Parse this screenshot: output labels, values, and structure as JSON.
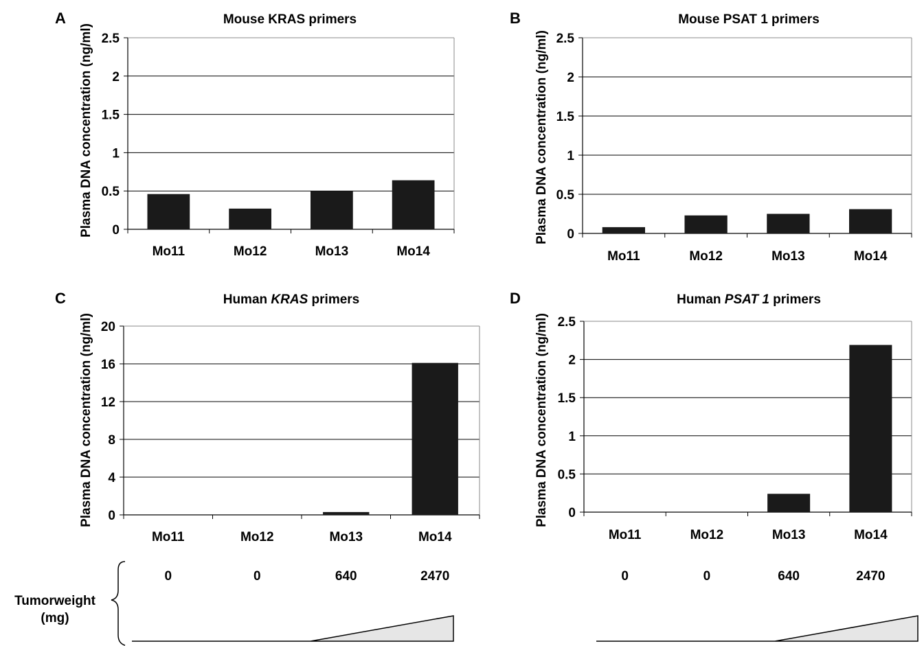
{
  "chart_data": [
    {
      "panel": "A",
      "type": "bar",
      "title": "Mouse KRAS primers",
      "ylabel": "Plasma DNA concentration (ng/ml)",
      "categories": [
        "Mo11",
        "Mo12",
        "Mo13",
        "Mo14"
      ],
      "values": [
        0.46,
        0.27,
        0.5,
        0.64
      ],
      "ylim": [
        0,
        2.5
      ],
      "yticks": [
        "0",
        "0.5",
        "1",
        "1.5",
        "2",
        "2.5"
      ],
      "grid": true,
      "bar_color": "#1a1a1a"
    },
    {
      "panel": "B",
      "type": "bar",
      "title": "Mouse PSAT 1 primers",
      "ylabel": "Plasma DNA concentration (ng/ml)",
      "categories": [
        "Mo11",
        "Mo12",
        "Mo13",
        "Mo14"
      ],
      "values": [
        0.08,
        0.23,
        0.25,
        0.31
      ],
      "ylim": [
        0,
        2.5
      ],
      "yticks": [
        "0",
        "0.5",
        "1",
        "1.5",
        "2",
        "2.5"
      ],
      "grid": true,
      "bar_color": "#1a1a1a"
    },
    {
      "panel": "C",
      "type": "bar",
      "title_prefix": "Human ",
      "title_gene": "KRAS",
      "title_suffix": " primers",
      "ylabel": "Plasma DNA concentration (ng/ml)",
      "categories": [
        "Mo11",
        "Mo12",
        "Mo13",
        "Mo14"
      ],
      "values": [
        0,
        0,
        0.3,
        16.1
      ],
      "ylim": [
        0,
        20
      ],
      "yticks": [
        "0",
        "4",
        "8",
        "12",
        "16",
        "20"
      ],
      "grid": true,
      "bar_color": "#1a1a1a"
    },
    {
      "panel": "D",
      "type": "bar",
      "title_prefix": "Human ",
      "title_gene": "PSAT 1",
      "title_suffix": " primers",
      "ylabel": "Plasma DNA concentration (ng/ml)",
      "categories": [
        "Mo11",
        "Mo12",
        "Mo13",
        "Mo14"
      ],
      "values": [
        0,
        0,
        0.24,
        2.19
      ],
      "ylim": [
        0,
        2.5
      ],
      "yticks": [
        "0",
        "0.5",
        "1",
        "1.5",
        "2",
        "2.5"
      ],
      "grid": true,
      "bar_color": "#1a1a1a"
    }
  ],
  "tumor_weight": {
    "label_line1": "Tumorweight",
    "label_line2": "(mg)",
    "values": [
      "0",
      "0",
      "640",
      "2470"
    ],
    "wedge_fill": "#e6e6e6"
  }
}
